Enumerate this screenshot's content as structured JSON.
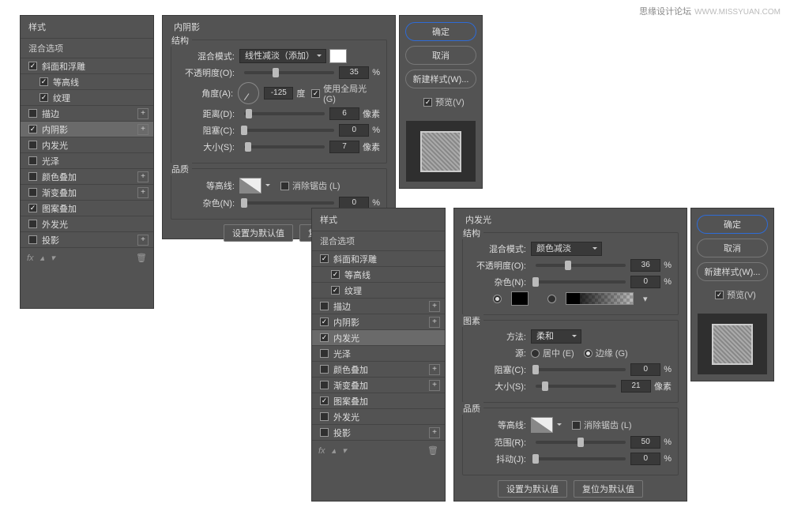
{
  "watermark": {
    "cn": "思缘设计论坛",
    "en": "WWW.MISSYUAN.COM"
  },
  "dialog1": {
    "styles": {
      "header": "样式",
      "subheader": "混合选项",
      "items": [
        {
          "label": "斜面和浮雕",
          "checked": true,
          "plus": false,
          "indent": false
        },
        {
          "label": "等高线",
          "checked": true,
          "plus": false,
          "indent": true
        },
        {
          "label": "纹理",
          "checked": true,
          "plus": false,
          "indent": true
        },
        {
          "label": "描边",
          "checked": false,
          "plus": true,
          "indent": false
        },
        {
          "label": "内阴影",
          "checked": true,
          "plus": true,
          "indent": false,
          "active": true
        },
        {
          "label": "内发光",
          "checked": false,
          "plus": false,
          "indent": false
        },
        {
          "label": "光泽",
          "checked": false,
          "plus": false,
          "indent": false
        },
        {
          "label": "颜色叠加",
          "checked": false,
          "plus": true,
          "indent": false
        },
        {
          "label": "渐变叠加",
          "checked": false,
          "plus": true,
          "indent": false
        },
        {
          "label": "图案叠加",
          "checked": true,
          "plus": false,
          "indent": false
        },
        {
          "label": "外发光",
          "checked": false,
          "plus": false,
          "indent": false
        },
        {
          "label": "投影",
          "checked": false,
          "plus": true,
          "indent": false
        }
      ],
      "fx": "fx"
    },
    "settings": {
      "title": "内阴影",
      "g_struct": "结构",
      "blend_mode_label": "混合模式:",
      "blend_mode_value": "线性减淡（添加）",
      "opacity_label": "不透明度(O):",
      "opacity_value": "35",
      "opacity_unit": "%",
      "angle_label": "角度(A):",
      "angle_value": "-125",
      "angle_unit": "度",
      "use_global_label": "使用全局光 (G)",
      "use_global_checked": true,
      "distance_label": "距离(D):",
      "distance_value": "6",
      "distance_unit": "像素",
      "choke_label": "阻塞(C):",
      "choke_value": "0",
      "choke_unit": "%",
      "size_label": "大小(S):",
      "size_value": "7",
      "size_unit": "像素",
      "g_quality": "品质",
      "contour_label": "等高线:",
      "anti_alias_label": "消除锯齿 (L)",
      "noise_label": "杂色(N):",
      "noise_value": "0",
      "noise_unit": "%",
      "btn_default": "设置为默认值",
      "btn_reset": "复位"
    },
    "right": {
      "ok": "确定",
      "cancel": "取消",
      "new_style": "新建样式(W)...",
      "preview_label": "预览(V)"
    }
  },
  "dialog2": {
    "styles": {
      "header": "样式",
      "subheader": "混合选项",
      "items": [
        {
          "label": "斜面和浮雕",
          "checked": true,
          "plus": false,
          "indent": false
        },
        {
          "label": "等高线",
          "checked": true,
          "plus": false,
          "indent": true
        },
        {
          "label": "纹理",
          "checked": true,
          "plus": false,
          "indent": true
        },
        {
          "label": "描边",
          "checked": false,
          "plus": true,
          "indent": false
        },
        {
          "label": "内阴影",
          "checked": true,
          "plus": true,
          "indent": false
        },
        {
          "label": "内发光",
          "checked": true,
          "plus": false,
          "indent": false,
          "active": true
        },
        {
          "label": "光泽",
          "checked": false,
          "plus": false,
          "indent": false
        },
        {
          "label": "颜色叠加",
          "checked": false,
          "plus": true,
          "indent": false
        },
        {
          "label": "渐变叠加",
          "checked": false,
          "plus": true,
          "indent": false
        },
        {
          "label": "图案叠加",
          "checked": true,
          "plus": false,
          "indent": false
        },
        {
          "label": "外发光",
          "checked": false,
          "plus": false,
          "indent": false
        },
        {
          "label": "投影",
          "checked": false,
          "plus": true,
          "indent": false
        }
      ],
      "fx": "fx"
    },
    "settings": {
      "title": "内发光",
      "g_struct": "结构",
      "blend_mode_label": "混合模式:",
      "blend_mode_value": "颜色减淡",
      "opacity_label": "不透明度(O):",
      "opacity_value": "36",
      "opacity_unit": "%",
      "noise_label": "杂色(N):",
      "noise_value": "0",
      "noise_unit": "%",
      "g_elements": "图素",
      "method_label": "方法:",
      "method_value": "柔和",
      "source_label": "源:",
      "source_center": "居中 (E)",
      "source_edge": "边缘 (G)",
      "choke_label": "阻塞(C):",
      "choke_value": "0",
      "choke_unit": "%",
      "size_label": "大小(S):",
      "size_value": "21",
      "size_unit": "像素",
      "g_quality": "品质",
      "contour_label": "等高线:",
      "anti_alias_label": "消除锯齿 (L)",
      "range_label": "范围(R):",
      "range_value": "50",
      "range_unit": "%",
      "jitter_label": "抖动(J):",
      "jitter_value": "0",
      "jitter_unit": "%",
      "btn_default": "设置为默认值",
      "btn_reset": "复位为默认值"
    },
    "right": {
      "ok": "确定",
      "cancel": "取消",
      "new_style": "新建样式(W)...",
      "preview_label": "预览(V)"
    }
  }
}
